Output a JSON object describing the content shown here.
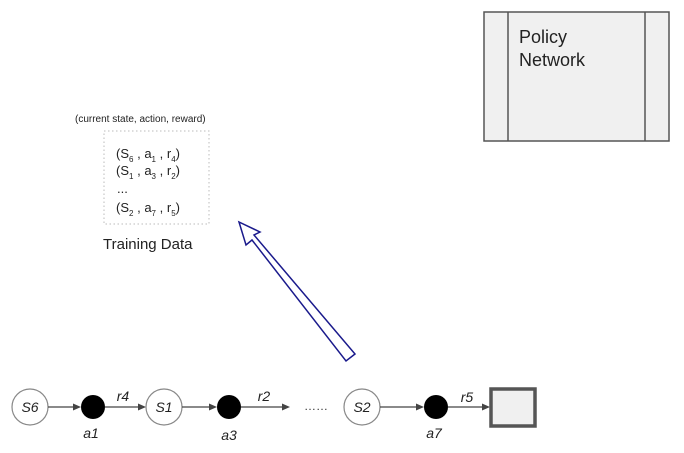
{
  "policy_network": {
    "line1": "Policy",
    "line2": "Network"
  },
  "training_data": {
    "caption": "(current state, action, reward)",
    "tuples": [
      {
        "s": "S",
        "s_sub": "6",
        "a": "a",
        "a_sub": "1",
        "r": "r",
        "r_sub": "4"
      },
      {
        "s": "S",
        "s_sub": "1",
        "a": "a",
        "a_sub": "3",
        "r": "r",
        "r_sub": "2"
      },
      {
        "s": "S",
        "s_sub": "2",
        "a": "a",
        "a_sub": "7",
        "r": "r",
        "r_sub": "5"
      }
    ],
    "ellipsis": "...",
    "label": "Training Data"
  },
  "trajectory": {
    "states": [
      "S6",
      "S1",
      "S2"
    ],
    "actions": [
      "a1",
      "a3",
      "a7"
    ],
    "rewards": [
      "r4",
      "r2",
      "r5"
    ],
    "gap": "……"
  },
  "colors": {
    "arrow_outline": "#1a1a8c",
    "box_fill": "#f0f0f0",
    "action_node": "#000000"
  }
}
